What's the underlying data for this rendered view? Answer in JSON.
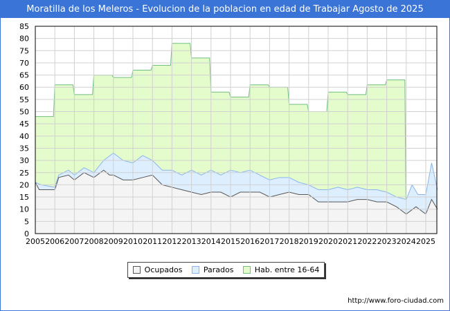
{
  "title": "Moratilla de los Meleros - Evolucion de la poblacion en edad de Trabajar Agosto de 2025",
  "footer_url": "http://www.foro-ciudad.com",
  "colors": {
    "hab": "#e4fbcc",
    "hab_line": "#6fbf7f",
    "parados": "#ddeeff",
    "parados_line": "#8ab4ee",
    "ocupados": "#f4f4f4",
    "ocupados_line": "#555555"
  },
  "chart_data": {
    "type": "area",
    "title": "Moratilla de los Meleros - Evolucion de la poblacion en edad de Trabajar Agosto de 2025",
    "ylim": [
      0,
      85
    ],
    "yticks": [
      0,
      5,
      10,
      15,
      20,
      25,
      30,
      35,
      40,
      45,
      50,
      55,
      60,
      65,
      70,
      75,
      80,
      85
    ],
    "xlim": [
      2005,
      2025.6
    ],
    "xticks": [
      "2005",
      "2006",
      "2007",
      "2008",
      "2009",
      "2010",
      "2011",
      "2012",
      "2013",
      "2014",
      "2015",
      "2016",
      "2017",
      "2018",
      "2019",
      "2020",
      "2021",
      "2022",
      "2023",
      "2024",
      "2025"
    ],
    "grid": true,
    "legend": {
      "position": "bottom",
      "entries": [
        "Ocupados",
        "Parados",
        "Hab. entre 16-64"
      ]
    },
    "hab": {
      "name": "Hab. entre 16-64",
      "years": [
        2005,
        2006,
        2007,
        2008,
        2009,
        2010,
        2011,
        2012,
        2013,
        2014,
        2015,
        2016,
        2017,
        2018,
        2019,
        2020,
        2021,
        2022,
        2023
      ],
      "values": [
        48,
        61,
        57,
        65,
        64,
        67,
        69,
        78,
        72,
        58,
        56,
        61,
        60,
        53,
        50,
        58,
        57,
        61,
        63
      ]
    },
    "parados": {
      "name": "Parados",
      "note": "plotted as ocupados + parados",
      "x": [
        2005,
        2005.3,
        2006,
        2006.2,
        2006.7,
        2007,
        2007.5,
        2008,
        2008.5,
        2009,
        2009.5,
        2010,
        2010.5,
        2011,
        2011.5,
        2012,
        2012.5,
        2013,
        2013.5,
        2014,
        2014.5,
        2015,
        2015.5,
        2016,
        2016.5,
        2017,
        2017.5,
        2018,
        2018.5,
        2019,
        2019.5,
        2020,
        2020.5,
        2021,
        2021.5,
        2022,
        2022.5,
        2023,
        2023.5,
        2024,
        2024.3,
        2024.6,
        2025,
        2025.3,
        2025.6
      ],
      "values": [
        21,
        20,
        19,
        24,
        26,
        24,
        27,
        25,
        30,
        33,
        30,
        29,
        32,
        30,
        26,
        26,
        24,
        26,
        24,
        26,
        24,
        26,
        25,
        26,
        24,
        22,
        23,
        23,
        21,
        20,
        18,
        18,
        19,
        18,
        19,
        18,
        18,
        17,
        15,
        14,
        20,
        16,
        16,
        29,
        18
      ]
    },
    "ocupados": {
      "name": "Ocupados",
      "x": [
        2005,
        2005.2,
        2005.5,
        2006,
        2006.2,
        2006.7,
        2007,
        2007.5,
        2008,
        2008.5,
        2008.8,
        2009,
        2009.5,
        2010,
        2010.5,
        2011,
        2011.5,
        2012,
        2012.5,
        2013,
        2013.5,
        2014,
        2014.5,
        2015,
        2015.5,
        2016,
        2016.5,
        2017,
        2017.5,
        2018,
        2018.5,
        2019,
        2019.5,
        2020,
        2020.5,
        2021,
        2021.5,
        2022,
        2022.5,
        2023,
        2023.5,
        2024,
        2024.5,
        2025,
        2025.3,
        2025.6
      ],
      "values": [
        21,
        18,
        18,
        18,
        23,
        24,
        22,
        25,
        23,
        26,
        24,
        24,
        22,
        22,
        23,
        24,
        20,
        19,
        18,
        17,
        16,
        17,
        17,
        15,
        17,
        17,
        17,
        15,
        16,
        17,
        16,
        16,
        13,
        13,
        13,
        13,
        14,
        14,
        13,
        13,
        11,
        8,
        11,
        8,
        14,
        10
      ]
    }
  }
}
